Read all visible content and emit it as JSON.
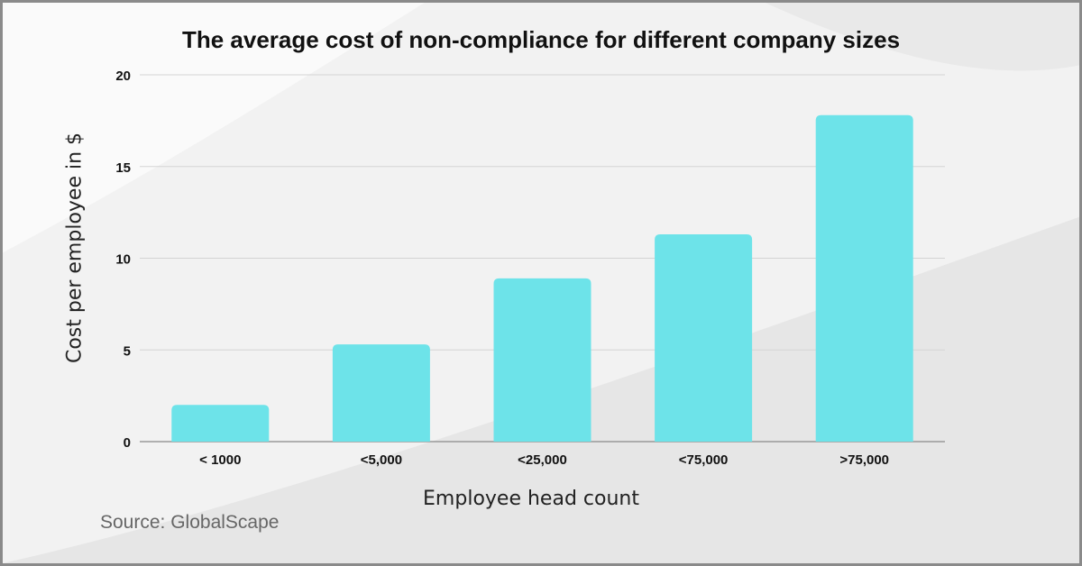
{
  "chart_data": {
    "type": "bar",
    "title": "The average cost of non-compliance for different company sizes",
    "xlabel": "Employee head count",
    "ylabel": "Cost per employee in $",
    "categories": [
      "< 1000",
      "<5,000",
      "<25,000",
      "<75,000",
      ">75,000"
    ],
    "values": [
      2.0,
      5.3,
      8.9,
      11.3,
      17.8
    ],
    "ylim": [
      0,
      20
    ],
    "yticks": [
      "0",
      "5",
      "10",
      "15",
      "20"
    ],
    "grid": true,
    "bar_color": "#6de3e9"
  },
  "source": "Source: GlobalScape"
}
